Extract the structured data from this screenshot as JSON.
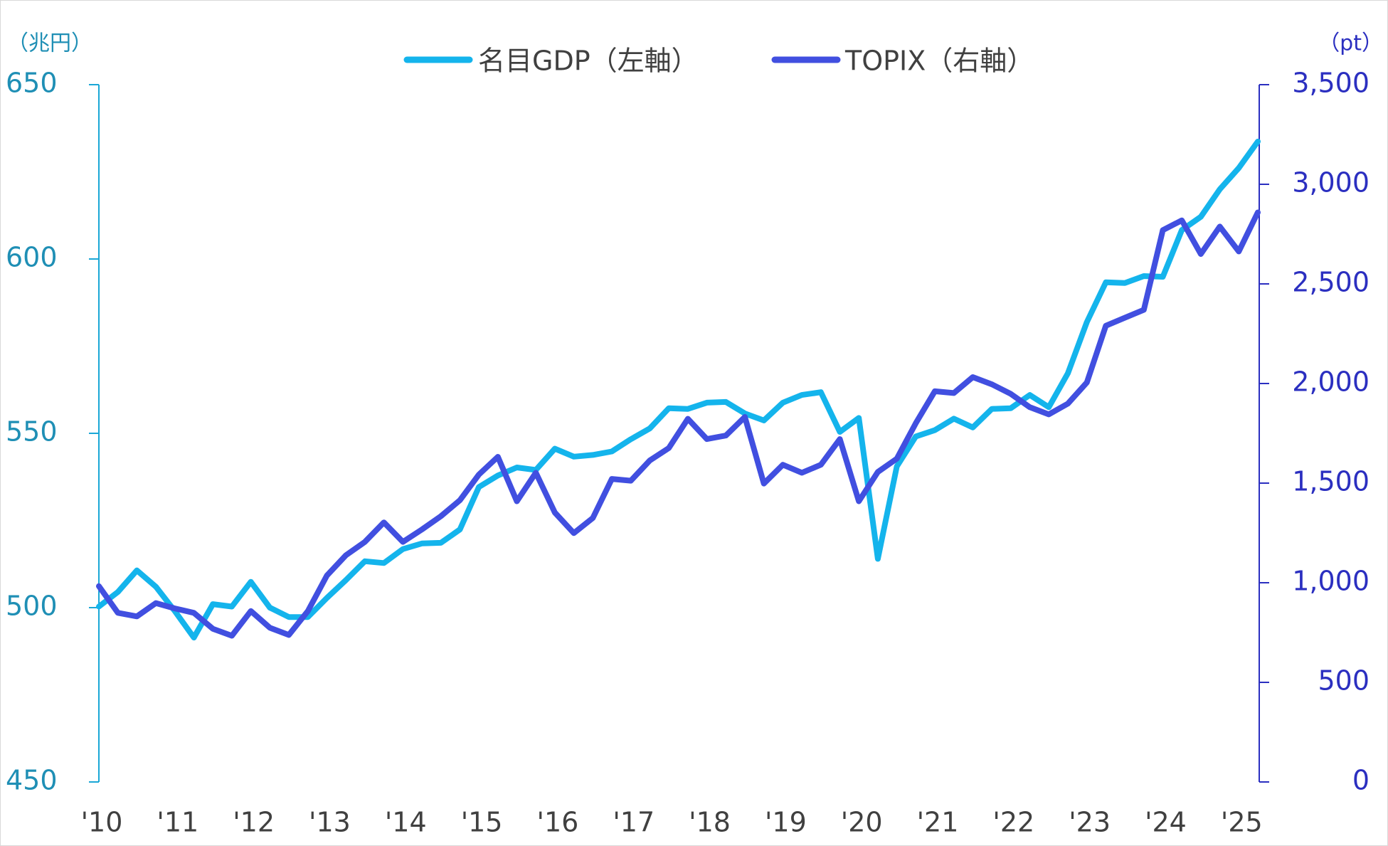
{
  "chart_data": {
    "type": "line",
    "categories": [
      "'10",
      null,
      null,
      null,
      "'11",
      null,
      null,
      null,
      "'12",
      null,
      null,
      null,
      "'13",
      null,
      null,
      null,
      "'14",
      null,
      null,
      null,
      "'15",
      null,
      null,
      null,
      "'16",
      null,
      null,
      null,
      "'17",
      null,
      null,
      null,
      "'18",
      null,
      null,
      null,
      "'19",
      null,
      null,
      null,
      "'20",
      null,
      null,
      null,
      "'21",
      null,
      null,
      null,
      "'22",
      null,
      null,
      null,
      "'23",
      null,
      null,
      null,
      "'24",
      null,
      null,
      null,
      "'25",
      null
    ],
    "series": [
      {
        "name": "名目GDP（左軸）",
        "color": "#14b4ec",
        "axis": "y",
        "values": [
          500.3,
          504.5,
          510.7,
          506,
          499,
          491.4,
          501,
          500.3,
          507.4,
          500,
          497.3,
          497.3,
          502.8,
          507.9,
          513.3,
          512.8,
          516.8,
          518.4,
          518.6,
          522.4,
          534.6,
          537.9,
          540.2,
          539.5,
          545.6,
          543.3,
          543.8,
          544.8,
          548.3,
          551.4,
          557.2,
          557,
          558.8,
          559,
          555.7,
          553.7,
          558.8,
          561,
          561.8,
          550.4,
          554.4,
          514,
          540.5,
          549.1,
          550.9,
          554.2,
          551.7,
          557,
          557.2,
          561,
          557.5,
          567.2,
          581.9,
          593.3,
          593.1,
          595.1,
          594.9,
          608.3,
          612.1,
          620,
          626.1,
          633.7
        ]
      },
      {
        "name": "TOPIX（右軸）",
        "color": "#414fe0",
        "axis": "y2",
        "values": [
          983,
          849,
          831,
          898,
          871,
          849,
          769,
          734,
          858,
          774,
          738,
          858,
          1036,
          1138,
          1205,
          1303,
          1205,
          1267,
          1334,
          1414,
          1543,
          1632,
          1409,
          1552,
          1352,
          1249,
          1325,
          1521,
          1512,
          1614,
          1676,
          1823,
          1721,
          1739,
          1832,
          1498,
          1592,
          1552,
          1592,
          1721,
          1409,
          1556,
          1623,
          1801,
          1961,
          1952,
          2032,
          1996,
          1948,
          1881,
          1845,
          1899,
          2005,
          2290,
          2330,
          2370,
          2770,
          2819,
          2650,
          2788,
          2663,
          2859
        ]
      }
    ],
    "y_unit": "（兆円）",
    "y2_unit": "（pt）",
    "ylim": [
      450,
      650
    ],
    "yticks": [
      450,
      500,
      550,
      600,
      650
    ],
    "y2lim": [
      0,
      3500
    ],
    "y2ticks": [
      0,
      500,
      {
        "value": 1000,
        "label": "1,000"
      },
      {
        "value": 1500,
        "label": "1,500"
      },
      {
        "value": 2000,
        "label": "2,000"
      },
      {
        "value": 2500,
        "label": "2,500"
      },
      {
        "value": 3000,
        "label": "3,000"
      },
      {
        "value": 3500,
        "label": "3,500"
      }
    ],
    "legend": "top"
  }
}
